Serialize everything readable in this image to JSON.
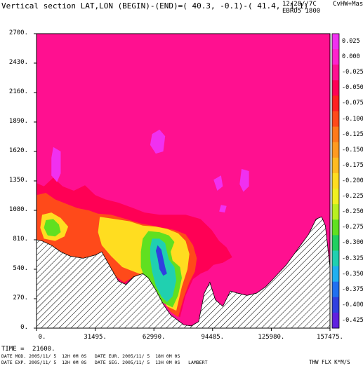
{
  "header": {
    "title": "Vertical section LAT,LON (BEGIN)-(END)=( 40.3, -0.1)-( 41.4,  1.1)",
    "date_code": "12/28//7C",
    "model_code": "CvHW+Mas",
    "run_code": "EBRO5 1800"
  },
  "footer": {
    "time_label": "TIME =",
    "time_value": "21600.",
    "line1": "DATE MOD. 2005/11/ 5  12H 0M 0S   DATE EUR. 2005/11/ 5  18H 0M 0S",
    "line2": "DATE EXP. 2005/11/ 5  12H 0M 0S   DATE SEG. 2005/11/ 5  13H 0M 0S   LAMBERT",
    "units": "THW FLX K*M/S"
  },
  "chart_data": {
    "type": "heatmap",
    "title": "Vertical section LAT,LON (BEGIN)-(END)=( 40.3, -0.1)-( 41.4,  1.1)",
    "xlabel": "",
    "ylabel": "",
    "xlim": [
      0,
      157475
    ],
    "ylim": [
      0,
      2700
    ],
    "x_ticks": [
      "0.",
      "31495.",
      "62990.",
      "94485.",
      "125980.",
      "157475."
    ],
    "y_ticks": [
      "0.",
      "270.",
      "540.",
      "810.",
      "1080.",
      "1350.",
      "1620.",
      "1890.",
      "2160.",
      "2430.",
      "2700."
    ],
    "colorbar": {
      "labels": [
        "0.025",
        "0.000",
        "-0.025",
        "-0.050",
        "-0.075",
        "-0.100",
        "-0.125",
        "-0.150",
        "-0.175",
        "-0.200",
        "-0.225",
        "-0.250",
        "-0.275",
        "-0.300",
        "-0.325",
        "-0.350",
        "-0.375",
        "-0.400",
        "-0.425"
      ],
      "colors": [
        "#f030f0",
        "#ff22cc",
        "#ff1090",
        "#ff0055",
        "#ff2020",
        "#ff4a1a",
        "#ff7a1a",
        "#ff9a20",
        "#ffbb20",
        "#ffdd20",
        "#f0f020",
        "#b8f020",
        "#60e020",
        "#20d060",
        "#20d0b0",
        "#20b0f0",
        "#2070f0",
        "#3040e0",
        "#6020e0"
      ]
    },
    "terrain": [
      [
        0,
        810
      ],
      [
        3000,
        800
      ],
      [
        8000,
        760
      ],
      [
        13000,
        700
      ],
      [
        18000,
        660
      ],
      [
        25000,
        640
      ],
      [
        31495,
        670
      ],
      [
        35000,
        700
      ],
      [
        39000,
        580
      ],
      [
        44000,
        430
      ],
      [
        48000,
        400
      ],
      [
        52000,
        470
      ],
      [
        57000,
        500
      ],
      [
        60000,
        460
      ],
      [
        64000,
        350
      ],
      [
        68000,
        220
      ],
      [
        72000,
        120
      ],
      [
        76000,
        70
      ],
      [
        79000,
        30
      ],
      [
        83000,
        20
      ],
      [
        87000,
        60
      ],
      [
        90000,
        320
      ],
      [
        93000,
        420
      ],
      [
        96000,
        260
      ],
      [
        100000,
        200
      ],
      [
        104000,
        340
      ],
      [
        108000,
        320
      ],
      [
        113000,
        300
      ],
      [
        118000,
        320
      ],
      [
        123000,
        380
      ],
      [
        128000,
        470
      ],
      [
        134000,
        580
      ],
      [
        140000,
        720
      ],
      [
        146000,
        860
      ],
      [
        150000,
        1000
      ],
      [
        153000,
        1020
      ],
      [
        155000,
        940
      ],
      [
        157475,
        560
      ]
    ],
    "regions": [
      {
        "level": "-0.050",
        "points": [
          [
            0,
            1330
          ],
          [
            4000,
            1300
          ],
          [
            9000,
            1380
          ],
          [
            14000,
            1300
          ],
          [
            20000,
            1260
          ],
          [
            26000,
            1310
          ],
          [
            31495,
            1220
          ],
          [
            37000,
            1180
          ],
          [
            44000,
            1150
          ],
          [
            52000,
            1100
          ],
          [
            58000,
            1060
          ],
          [
            66000,
            1040
          ],
          [
            73000,
            1040
          ],
          [
            80000,
            1040
          ],
          [
            88000,
            1000
          ],
          [
            94000,
            900
          ],
          [
            98000,
            800
          ],
          [
            102000,
            740
          ],
          [
            105000,
            650
          ],
          [
            100000,
            600
          ],
          [
            95000,
            580
          ],
          [
            92000,
            530
          ],
          [
            88000,
            500
          ],
          [
            84000,
            450
          ],
          [
            80000,
            300
          ],
          [
            77000,
            100
          ],
          [
            72000,
            150
          ],
          [
            64000,
            350
          ],
          [
            57000,
            500
          ],
          [
            52000,
            470
          ],
          [
            47000,
            400
          ],
          [
            42000,
            470
          ],
          [
            37000,
            620
          ],
          [
            31495,
            670
          ],
          [
            20000,
            650
          ],
          [
            10000,
            730
          ],
          [
            0,
            810
          ]
        ]
      },
      {
        "level": "-0.100",
        "points": [
          [
            0,
            1220
          ],
          [
            5000,
            1240
          ],
          [
            10000,
            1180
          ],
          [
            16000,
            1140
          ],
          [
            22000,
            1100
          ],
          [
            28000,
            1080
          ],
          [
            33000,
            1050
          ],
          [
            40000,
            1040
          ],
          [
            48000,
            1000
          ],
          [
            56000,
            960
          ],
          [
            62000,
            940
          ],
          [
            68000,
            920
          ],
          [
            74000,
            900
          ],
          [
            80000,
            860
          ],
          [
            84000,
            760
          ],
          [
            86000,
            640
          ],
          [
            85000,
            520
          ],
          [
            82000,
            420
          ],
          [
            79000,
            280
          ],
          [
            76000,
            100
          ],
          [
            72000,
            150
          ],
          [
            64000,
            350
          ],
          [
            58000,
            470
          ],
          [
            52000,
            470
          ],
          [
            47000,
            420
          ],
          [
            42000,
            480
          ],
          [
            38000,
            600
          ],
          [
            33000,
            650
          ],
          [
            26000,
            640
          ],
          [
            16000,
            660
          ],
          [
            6000,
            760
          ],
          [
            0,
            810
          ]
        ]
      },
      {
        "level": "-0.200",
        "points": [
          [
            3000,
            1040
          ],
          [
            8000,
            1060
          ],
          [
            13000,
            1010
          ],
          [
            17000,
            930
          ],
          [
            15000,
            840
          ],
          [
            10000,
            800
          ],
          [
            4000,
            820
          ],
          [
            2000,
            920
          ]
        ]
      },
      {
        "level": "-0.200",
        "points": [
          [
            34000,
            1020
          ],
          [
            42000,
            1000
          ],
          [
            50000,
            980
          ],
          [
            57000,
            940
          ],
          [
            64000,
            930
          ],
          [
            70000,
            910
          ],
          [
            76000,
            870
          ],
          [
            80000,
            800
          ],
          [
            82000,
            680
          ],
          [
            81000,
            540
          ],
          [
            78000,
            380
          ],
          [
            75000,
            160
          ],
          [
            70000,
            200
          ],
          [
            64000,
            360
          ],
          [
            58000,
            480
          ],
          [
            52000,
            520
          ],
          [
            46000,
            560
          ],
          [
            40000,
            660
          ],
          [
            35000,
            760
          ],
          [
            33000,
            880
          ]
        ]
      },
      {
        "level": "-0.275",
        "points": [
          [
            5000,
            990
          ],
          [
            9000,
            1000
          ],
          [
            12000,
            950
          ],
          [
            13000,
            880
          ],
          [
            10000,
            840
          ],
          [
            6000,
            850
          ],
          [
            4000,
            920
          ]
        ]
      },
      {
        "level": "-0.275",
        "points": [
          [
            60000,
            890
          ],
          [
            66000,
            880
          ],
          [
            71000,
            850
          ],
          [
            74000,
            790
          ],
          [
            72000,
            700
          ],
          [
            73000,
            620
          ],
          [
            77000,
            560
          ],
          [
            78000,
            460
          ],
          [
            76000,
            300
          ],
          [
            73000,
            190
          ],
          [
            68000,
            230
          ],
          [
            64000,
            330
          ],
          [
            60000,
            380
          ],
          [
            58000,
            460
          ],
          [
            56000,
            560
          ],
          [
            56000,
            700
          ],
          [
            57000,
            820
          ]
        ]
      },
      {
        "level": "-0.325",
        "points": [
          [
            62000,
            820
          ],
          [
            66000,
            820
          ],
          [
            69000,
            780
          ],
          [
            70000,
            700
          ],
          [
            71000,
            630
          ],
          [
            74000,
            560
          ],
          [
            75000,
            440
          ],
          [
            73000,
            290
          ],
          [
            70000,
            240
          ],
          [
            67000,
            290
          ],
          [
            64000,
            390
          ],
          [
            62000,
            520
          ],
          [
            61000,
            640
          ],
          [
            61000,
            740
          ]
        ]
      },
      {
        "level": "-0.400",
        "points": [
          [
            65000,
            760
          ],
          [
            67000,
            720
          ],
          [
            68000,
            640
          ],
          [
            69000,
            560
          ],
          [
            70000,
            500
          ],
          [
            68000,
            480
          ],
          [
            66000,
            540
          ],
          [
            65000,
            640
          ],
          [
            64000,
            710
          ]
        ]
      },
      {
        "level": "0.025",
        "points": [
          [
            62000,
            1780
          ],
          [
            66000,
            1820
          ],
          [
            69000,
            1760
          ],
          [
            68000,
            1620
          ],
          [
            64000,
            1600
          ],
          [
            61000,
            1680
          ]
        ]
      },
      {
        "level": "0.025",
        "points": [
          [
            9000,
            1660
          ],
          [
            13000,
            1620
          ],
          [
            13000,
            1420
          ],
          [
            11000,
            1340
          ],
          [
            8000,
            1400
          ],
          [
            8000,
            1560
          ]
        ]
      },
      {
        "level": "0.025",
        "points": [
          [
            110000,
            1460
          ],
          [
            114000,
            1440
          ],
          [
            114000,
            1300
          ],
          [
            111000,
            1250
          ],
          [
            109000,
            1320
          ]
        ]
      },
      {
        "level": "0.025",
        "points": [
          [
            95000,
            1360
          ],
          [
            99000,
            1400
          ],
          [
            100000,
            1300
          ],
          [
            97000,
            1260
          ]
        ]
      },
      {
        "level": "0.025",
        "points": [
          [
            99000,
            1130
          ],
          [
            102000,
            1120
          ],
          [
            101000,
            1060
          ],
          [
            98000,
            1070
          ]
        ]
      }
    ]
  }
}
